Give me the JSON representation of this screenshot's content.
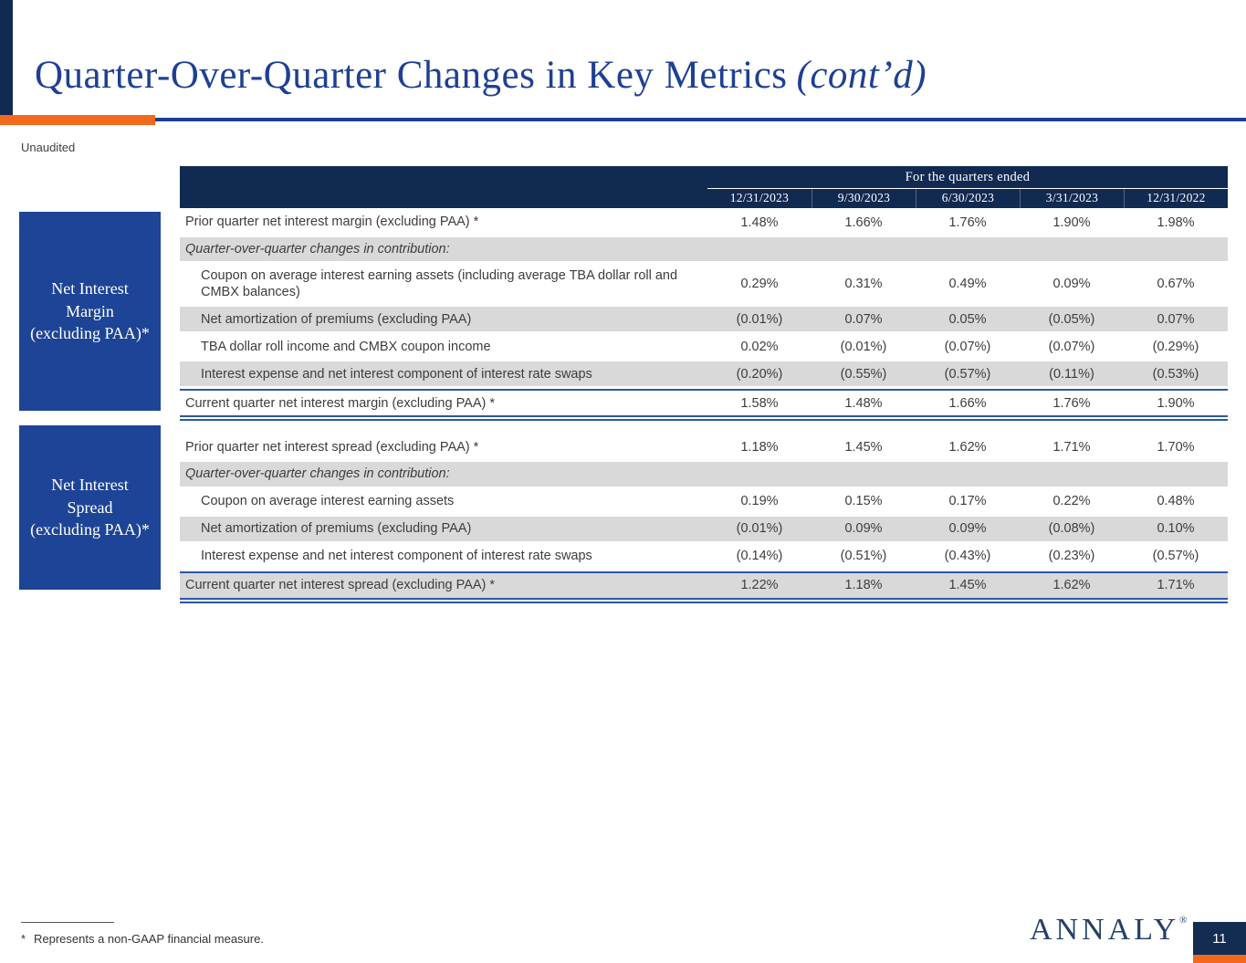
{
  "slide": {
    "title": "Quarter-Over-Quarter Changes in Key Metrics",
    "title_suffix": "(cont’d)",
    "subtitle": "Unaudited",
    "footnote_mark": "*",
    "footnote_text": "Represents a non-GAAP financial measure.",
    "logo_text": "ANNALY",
    "logo_reg_mark": "®",
    "page_number": "11",
    "colors": {
      "navy": "#112a52",
      "royal_blue": "#1d4496",
      "orange": "#f2691e",
      "row_gray": "#d9d9d9",
      "line_blue": "#2b57a5",
      "title_blue": "#1e4094",
      "body_text": "#3d3d3d",
      "logo_navy": "#23406b"
    }
  },
  "table_header": {
    "group_label": "For the quarters ended",
    "columns": [
      "12/31/2023",
      "9/30/2023",
      "6/30/2023",
      "3/31/2023",
      "12/31/2022"
    ]
  },
  "sections": [
    {
      "side_label_lines": [
        "Net Interest",
        "Margin",
        "(excluding PAA)*"
      ],
      "rows": [
        {
          "label": "Prior quarter net interest margin (excluding PAA) *",
          "values": [
            "1.48%",
            "1.66%",
            "1.76%",
            "1.90%",
            "1.98%"
          ],
          "shaded": false,
          "indent": false,
          "italic": false,
          "subhead": false,
          "tall": false,
          "total": false
        },
        {
          "label": "Quarter-over-quarter changes in contribution:",
          "values": [
            "",
            "",
            "",
            "",
            ""
          ],
          "shaded": true,
          "indent": false,
          "italic": true,
          "subhead": true,
          "tall": false,
          "total": false
        },
        {
          "label": "Coupon on average interest earning assets (including average TBA dollar roll and CMBX balances)",
          "values": [
            "0.29%",
            "0.31%",
            "0.49%",
            "0.09%",
            "0.67%"
          ],
          "shaded": false,
          "indent": true,
          "italic": false,
          "subhead": false,
          "tall": true,
          "total": false
        },
        {
          "label": "Net amortization of premiums (excluding PAA)",
          "values": [
            "(0.01%)",
            "0.07%",
            "0.05%",
            "(0.05%)",
            "0.07%"
          ],
          "shaded": true,
          "indent": true,
          "italic": false,
          "subhead": false,
          "tall": false,
          "total": false
        },
        {
          "label": "TBA dollar roll income and CMBX coupon income",
          "values": [
            "0.02%",
            "(0.01%)",
            "(0.07%)",
            "(0.07%)",
            "(0.29%)"
          ],
          "shaded": false,
          "indent": true,
          "italic": false,
          "subhead": false,
          "tall": false,
          "total": false
        },
        {
          "label": "Interest expense and net interest component of interest rate swaps",
          "values": [
            "(0.20%)",
            "(0.55%)",
            "(0.57%)",
            "(0.11%)",
            "(0.53%)"
          ],
          "shaded": true,
          "indent": true,
          "italic": false,
          "subhead": false,
          "tall": false,
          "total": false
        },
        {
          "label": "Current quarter net interest margin (excluding PAA) *",
          "values": [
            "1.58%",
            "1.48%",
            "1.66%",
            "1.76%",
            "1.90%"
          ],
          "shaded": false,
          "indent": false,
          "italic": false,
          "subhead": false,
          "tall": false,
          "total": true
        }
      ]
    },
    {
      "side_label_lines": [
        "Net Interest",
        "Spread",
        "(excluding PAA)*"
      ],
      "rows": [
        {
          "label": "Prior quarter net interest spread (excluding PAA) *",
          "values": [
            "1.18%",
            "1.45%",
            "1.62%",
            "1.71%",
            "1.70%"
          ],
          "shaded": false,
          "indent": false,
          "italic": false,
          "subhead": false,
          "tall": false,
          "total": false
        },
        {
          "label": "Quarter-over-quarter changes in contribution:",
          "values": [
            "",
            "",
            "",
            "",
            ""
          ],
          "shaded": true,
          "indent": false,
          "italic": true,
          "subhead": true,
          "tall": false,
          "total": false
        },
        {
          "label": "Coupon on average interest earning assets",
          "values": [
            "0.19%",
            "0.15%",
            "0.17%",
            "0.22%",
            "0.48%"
          ],
          "shaded": false,
          "indent": true,
          "italic": false,
          "subhead": false,
          "tall": false,
          "total": false
        },
        {
          "label": "Net amortization of premiums (excluding PAA)",
          "values": [
            "(0.01%)",
            "0.09%",
            "0.09%",
            "(0.08%)",
            "0.10%"
          ],
          "shaded": true,
          "indent": true,
          "italic": false,
          "subhead": false,
          "tall": false,
          "total": false
        },
        {
          "label": "Interest expense and net interest component of interest rate swaps",
          "values": [
            "(0.14%)",
            "(0.51%)",
            "(0.43%)",
            "(0.23%)",
            "(0.57%)"
          ],
          "shaded": false,
          "indent": true,
          "italic": false,
          "subhead": false,
          "tall": false,
          "total": false
        },
        {
          "label": "Current quarter net interest spread (excluding PAA) *",
          "values": [
            "1.22%",
            "1.18%",
            "1.45%",
            "1.62%",
            "1.71%"
          ],
          "shaded": true,
          "indent": false,
          "italic": false,
          "subhead": false,
          "tall": false,
          "total": true
        }
      ]
    }
  ]
}
